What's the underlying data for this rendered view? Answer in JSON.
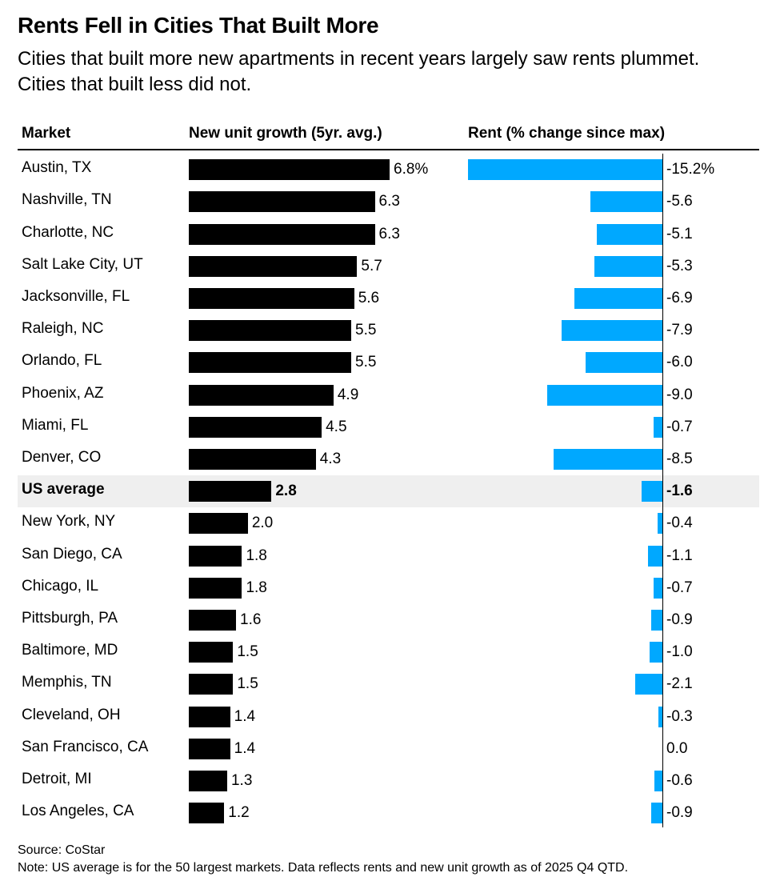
{
  "chart_data": {
    "type": "bar",
    "title": "Rents Fell in Cities That Built More",
    "subtitle": "Cities that built more new apartments in recent years largely saw rents plummet. Cities that built less did not.",
    "columns": {
      "market": "Market",
      "growth": "New unit growth (5yr. avg.)",
      "rent": "Rent (% change since max)"
    },
    "categories": [
      "Austin, TX",
      "Nashville, TN",
      "Charlotte, NC",
      "Salt Lake City, UT",
      "Jacksonville, FL",
      "Raleigh, NC",
      "Orlando, FL",
      "Phoenix, AZ",
      "Miami, FL",
      "Denver, CO",
      "US average",
      "New York, NY",
      "San Diego, CA",
      "Chicago, IL",
      "Pittsburgh, PA",
      "Baltimore, MD",
      "Memphis, TN",
      "Cleveland, OH",
      "San Francisco, CA",
      "Detroit, MI",
      "Los Angeles, CA"
    ],
    "highlight_category": "US average",
    "series": [
      {
        "name": "New unit growth (5yr. avg.)",
        "values": [
          6.8,
          6.3,
          6.3,
          5.7,
          5.6,
          5.5,
          5.5,
          4.9,
          4.5,
          4.3,
          2.8,
          2.0,
          1.8,
          1.8,
          1.6,
          1.5,
          1.5,
          1.4,
          1.4,
          1.3,
          1.2
        ],
        "labels": [
          "6.8%",
          "6.3",
          "6.3",
          "5.7",
          "5.6",
          "5.5",
          "5.5",
          "4.9",
          "4.5",
          "4.3",
          "2.8",
          "2.0",
          "1.8",
          "1.8",
          "1.6",
          "1.5",
          "1.5",
          "1.4",
          "1.4",
          "1.3",
          "1.2"
        ],
        "color": "#000000"
      },
      {
        "name": "Rent (% change since max)",
        "values": [
          -15.2,
          -5.6,
          -5.1,
          -5.3,
          -6.9,
          -7.9,
          -6.0,
          -9.0,
          -0.7,
          -8.5,
          -1.6,
          -0.4,
          -1.1,
          -0.7,
          -0.9,
          -1.0,
          -2.1,
          -0.3,
          0.0,
          -0.6,
          -0.9
        ],
        "labels": [
          "-15.2%",
          "-5.6",
          "-5.1",
          "-5.3",
          "-6.9",
          "-7.9",
          "-6.0",
          "-9.0",
          "-0.7",
          "-8.5",
          "-1.6",
          "-0.4",
          "-1.1",
          "-0.7",
          "-0.9",
          "-1.0",
          "-2.1",
          "-0.3",
          "0.0",
          "-0.6",
          "-0.9"
        ],
        "color": "#00a8ff"
      }
    ],
    "source": "Source: CoStar",
    "note": "Note: US average is for the 50 largest markets. Data reflects rents and new unit growth as of 2025 Q4 QTD."
  }
}
